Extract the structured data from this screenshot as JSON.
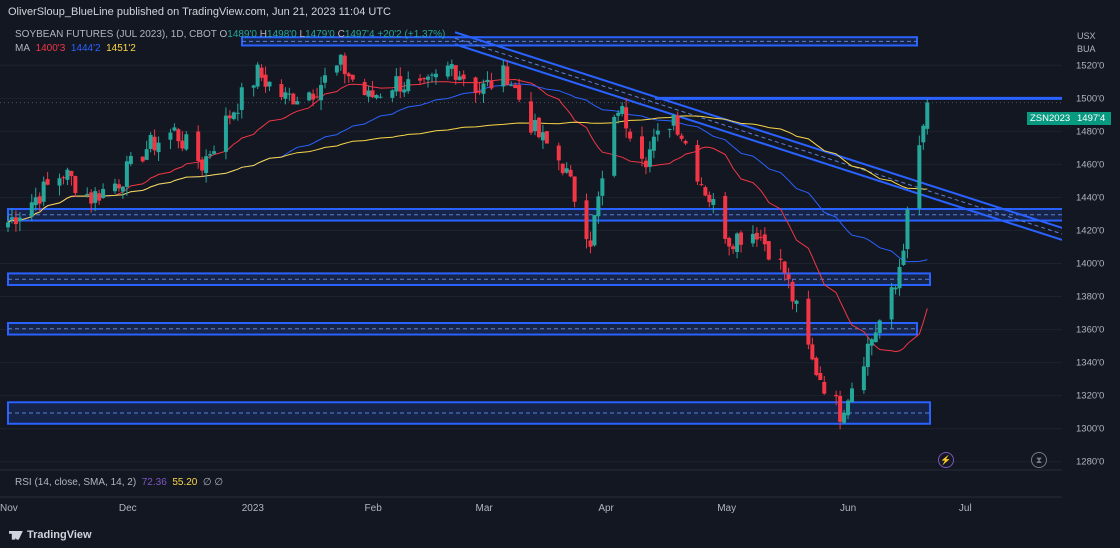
{
  "header": {
    "published_text": "OliverSloup_BlueLine published on TradingView.com, Jun 21, 2023 11:04 UTC"
  },
  "legend": {
    "symbol": "SOYBEAN FUTURES (JUL 2023), 1D, CBOT",
    "o_label": "O",
    "o_value": "1489'0",
    "h_label": "H",
    "h_value": "1498'0",
    "l_label": "L",
    "l_value": "1479'0",
    "c_label": "C",
    "c_value": "1497'4",
    "change": "+20'2 (+1.37%)",
    "ma_label": "MA",
    "ma_values": [
      "1400'3",
      "1444'2",
      "1451'2"
    ]
  },
  "currency": {
    "line1": "USX",
    "line2": "BUA"
  },
  "price_tag": {
    "ticker": "ZSN2023",
    "value": "1497'4"
  },
  "rsi": {
    "label": "RSI (14, close, SMA, 14, 2)",
    "value1": "72.36",
    "value2": "55.20",
    "extra": "∅ ∅"
  },
  "footer": {
    "brand": "TradingView"
  },
  "colors": {
    "background": "#131722",
    "up": "#26a69a",
    "down": "#f23645",
    "zone": "#2962ff",
    "ma_fast": "#f23645",
    "ma_mid": "#2962ff",
    "ma_slow": "#f9d648"
  },
  "chart_data": {
    "type": "candlestick",
    "title": "SOYBEAN FUTURES (JUL 2023), 1D, CBOT",
    "y_ticks": [
      "1520'0",
      "1500'0",
      "1480'0",
      "1460'0",
      "1440'0",
      "1420'0",
      "1400'0",
      "1380'0",
      "1360'0",
      "1340'0",
      "1320'0",
      "1300'0",
      "1280'0"
    ],
    "y_tick_values": [
      1520,
      1500,
      1480,
      1460,
      1440,
      1420,
      1400,
      1380,
      1360,
      1340,
      1320,
      1300,
      1280
    ],
    "ylim": [
      1275,
      1545
    ],
    "x_ticks": [
      "Nov",
      "Dec",
      "2023",
      "Feb",
      "Mar",
      "Apr",
      "May",
      "Jun",
      "Jul"
    ],
    "x_tick_dates": [
      "2022-11-01",
      "2022-12-01",
      "2023-01-01",
      "2023-02-01",
      "2023-03-01",
      "2023-04-01",
      "2023-05-01",
      "2023-06-01",
      "2023-07-01"
    ],
    "xlim": [
      "2022-11-01",
      "2023-07-25"
    ],
    "ohlc_close_path": [
      {
        "date": "2022-11-01",
        "close": 1425
      },
      {
        "date": "2022-11-08",
        "close": 1440
      },
      {
        "date": "2022-11-15",
        "close": 1455
      },
      {
        "date": "2022-11-22",
        "close": 1440
      },
      {
        "date": "2022-11-29",
        "close": 1450
      },
      {
        "date": "2022-12-06",
        "close": 1470
      },
      {
        "date": "2022-12-13",
        "close": 1480
      },
      {
        "date": "2022-12-20",
        "close": 1460
      },
      {
        "date": "2022-12-27",
        "close": 1490
      },
      {
        "date": "2023-01-03",
        "close": 1515
      },
      {
        "date": "2023-01-10",
        "close": 1500
      },
      {
        "date": "2023-01-17",
        "close": 1505
      },
      {
        "date": "2023-01-24",
        "close": 1520
      },
      {
        "date": "2023-01-31",
        "close": 1500
      },
      {
        "date": "2023-02-07",
        "close": 1510
      },
      {
        "date": "2023-02-14",
        "close": 1505
      },
      {
        "date": "2023-02-21",
        "close": 1520
      },
      {
        "date": "2023-02-28",
        "close": 1505
      },
      {
        "date": "2023-03-07",
        "close": 1515
      },
      {
        "date": "2023-03-14",
        "close": 1480
      },
      {
        "date": "2023-03-21",
        "close": 1460
      },
      {
        "date": "2023-03-28",
        "close": 1415
      },
      {
        "date": "2023-04-04",
        "close": 1495
      },
      {
        "date": "2023-04-11",
        "close": 1465
      },
      {
        "date": "2023-04-18",
        "close": 1490
      },
      {
        "date": "2023-04-25",
        "close": 1450
      },
      {
        "date": "2023-05-02",
        "close": 1415
      },
      {
        "date": "2023-05-09",
        "close": 1420
      },
      {
        "date": "2023-05-16",
        "close": 1395
      },
      {
        "date": "2023-05-23",
        "close": 1340
      },
      {
        "date": "2023-05-30",
        "close": 1310
      },
      {
        "date": "2023-06-06",
        "close": 1350
      },
      {
        "date": "2023-06-13",
        "close": 1385
      },
      {
        "date": "2023-06-21",
        "close": 1497.5
      }
    ],
    "series": [
      {
        "name": "MA 1400'3",
        "last": 1400.4
      },
      {
        "name": "MA 1444'2",
        "last": 1444.25
      },
      {
        "name": "MA 1451'2",
        "last": 1451.25
      }
    ],
    "zones": [
      {
        "from": 1532,
        "to": 1537
      },
      {
        "from": 1426,
        "to": 1433
      },
      {
        "from": 1387,
        "to": 1394
      },
      {
        "from": 1357,
        "to": 1364
      },
      {
        "from": 1303,
        "to": 1316
      }
    ],
    "resistance": 1500,
    "xlabel": "",
    "ylabel": ""
  }
}
